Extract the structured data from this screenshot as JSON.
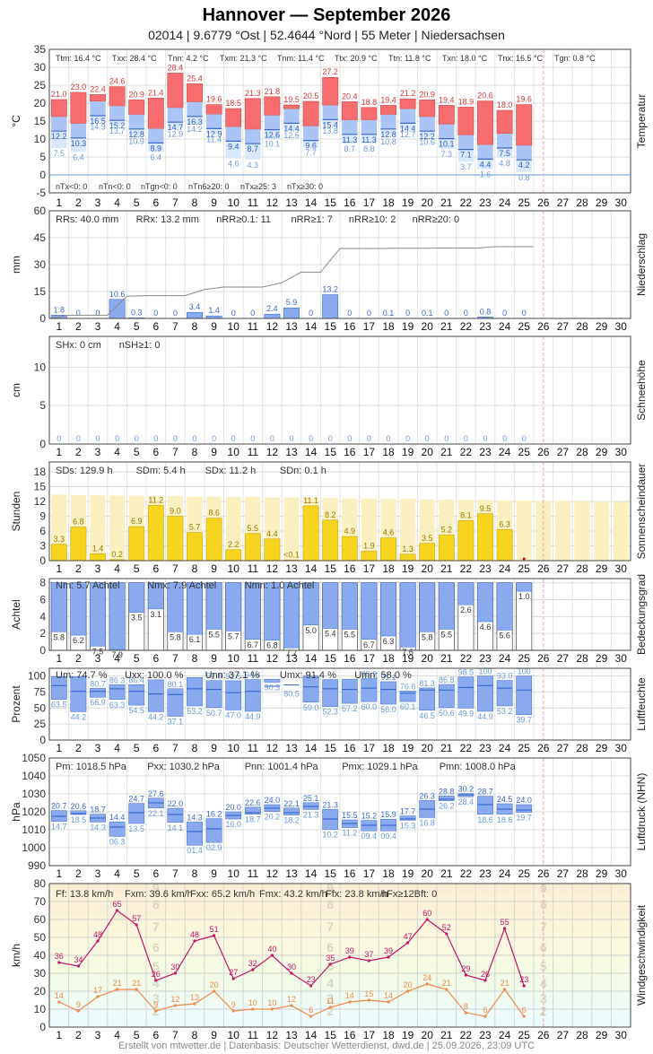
{
  "header": {
    "title": "Hannover  —  September 2026",
    "subtitle": "02014  |  9.6779 °Ost  |  52.4644 °Nord  |  55 Meter  |  Niedersachsen"
  },
  "footer": "Erstellt von mtwetter.de | Datenbasis: Deutscher Wetterdienst, dwd.de | 25.09.2026, 23:09 UTC",
  "days": [
    "1",
    "2",
    "3",
    "4",
    "5",
    "6",
    "7",
    "8",
    "9",
    "10",
    "11",
    "12",
    "13",
    "14",
    "15",
    "16",
    "17",
    "18",
    "19",
    "20",
    "21",
    "22",
    "23",
    "24",
    "25",
    "26",
    "27",
    "28",
    "29",
    "30"
  ],
  "today_marker_day": 25.5,
  "colors": {
    "temp_hi": "#f76c6c",
    "temp_mid": "#aac4f5",
    "temp_lo": "#d8e8fa",
    "rain": "#8aaaf0",
    "sun": "#f7d51e",
    "sun_bg": "#fbf1c0",
    "cloud": "#8aaaf0",
    "humid": "#8aaaf0",
    "press": "#8aaaf0",
    "wind_max": "#c4156a",
    "wind_avg": "#f08a4b",
    "grid": "#cccccc",
    "marker": "#f2a0b8"
  },
  "chart_data": [
    {
      "id": "temperature",
      "type": "bar",
      "side_label": "Temperatur",
      "ylabel": "°C",
      "ylim": [
        -5,
        35
      ],
      "ticks": [
        "35",
        "30",
        "25",
        "20",
        "15",
        "10",
        "5",
        "0",
        "-5"
      ],
      "stats_top": [
        "Ttm: 16.4 °C",
        "Txx: 28.4 °C",
        "Tnn: 4.2 °C",
        "Txm: 21.3 °C",
        "Tnm: 11.4 °C",
        "Ttx: 20.9 °C",
        "Ttn: 11.8 °C",
        "Txn: 18.0 °C",
        "Tnx: 16.5 °C",
        "Tgn: 0.8 °C"
      ],
      "stats_bottom": [
        "nTx<0: 0",
        "nTn<0: 0",
        "nTgn<0: 0",
        "nTn6≥20: 0",
        "nTx≥25: 3",
        "nTx≥30: 0"
      ],
      "tmax": [
        21.0,
        23.0,
        22.4,
        24.6,
        20.9,
        21.4,
        28.4,
        25.4,
        19.6,
        18.5,
        21.3,
        21.8,
        19.5,
        20.5,
        27.2,
        20.4,
        18.8,
        19.4,
        21.2,
        20.9,
        19.4,
        18.9,
        20.6,
        18.0,
        19.6
      ],
      "tmean": [
        12.2,
        10.3,
        16.5,
        15.2,
        12.8,
        8.9,
        14.7,
        16.3,
        12.9,
        9.4,
        8.7,
        12.6,
        14.4,
        9.6,
        15.4,
        11.3,
        11.3,
        12.8,
        14.4,
        12.2,
        10.1,
        7.1,
        4.4,
        7.5,
        4.2
      ],
      "tmin": [
        7.5,
        6.4,
        14.9,
        13.7,
        10.9,
        6.4,
        12.9,
        14.2,
        11.4,
        4.6,
        4.3,
        10.1,
        12.5,
        7.7,
        13.8,
        8.7,
        8.8,
        10.8,
        12.7,
        10.6,
        7.3,
        3.7,
        1.6,
        4.8,
        0.8
      ],
      "tmin_label": [
        7.5,
        6.4,
        14.9,
        13.7,
        10.9,
        6.4,
        12.9,
        14.2,
        11.4,
        4.6,
        4.3,
        10.1,
        12.5,
        7.7,
        13.8,
        8.7,
        8.8,
        10.8,
        12.7,
        10.6,
        7.3,
        3.7,
        1.6,
        4.8,
        0.8
      ],
      "tmin_labels_alt": [
        "",
        "",
        "",
        "",
        "",
        "",
        "",
        "",
        "",
        "",
        "",
        "",
        "",
        "",
        "",
        "",
        "",
        "",
        "",
        "",
        "",
        "",
        "1.6",
        "",
        "0.8"
      ]
    },
    {
      "id": "precipitation",
      "type": "bar",
      "side_label": "Niederschlag",
      "ylabel": "mm",
      "ylim": [
        0,
        60
      ],
      "ticks": [
        "60",
        "45",
        "30",
        "15",
        "0"
      ],
      "stats": [
        "RRs: 40.0 mm",
        "RRx: 13.2 mm",
        "nRR≥0.1: 11",
        "nRR≥1: 7",
        "nRR≥10: 2",
        "nRR≥20: 0"
      ],
      "values": [
        1.8,
        0,
        0,
        10.6,
        0.3,
        0,
        0,
        3.4,
        1.4,
        0,
        0,
        2.4,
        5.9,
        0,
        13.2,
        0,
        0,
        0.1,
        0,
        0.1,
        0,
        0,
        0.8,
        0,
        0
      ],
      "labels": [
        "1.8",
        "0",
        "0",
        "10.6",
        "0.3",
        "0",
        "0",
        "3.4",
        "1.4",
        "0",
        "0",
        "2.4",
        "5.9",
        "0",
        "13.2",
        "0",
        "0",
        "0.1",
        "0",
        "0.1",
        "0",
        "0",
        "0.8",
        "0",
        "0"
      ],
      "cumulative": [
        1.8,
        1.8,
        1.8,
        12.4,
        12.7,
        12.7,
        12.7,
        16.1,
        17.5,
        17.5,
        17.5,
        19.9,
        25.8,
        25.8,
        39.0,
        39.0,
        39.0,
        39.1,
        39.1,
        39.2,
        39.2,
        39.2,
        40.0,
        40.0,
        40.0
      ]
    },
    {
      "id": "snow",
      "type": "bar",
      "side_label": "Schneehöhe",
      "ylabel": "cm",
      "ylim": [
        0,
        14
      ],
      "ticks": [
        "10",
        "5",
        "0"
      ],
      "stats": [
        "SHx: 0 cm",
        "nSH≥1: 0"
      ],
      "values": [
        0,
        0,
        0,
        0,
        0,
        0,
        0,
        0,
        0,
        0,
        0,
        0,
        0,
        0,
        0,
        0,
        0,
        0,
        0,
        0,
        0,
        0,
        0,
        0,
        0
      ],
      "labels": [
        "0",
        "0",
        "0",
        "0",
        "0",
        "0",
        "0",
        "0",
        "0",
        "0",
        "0",
        "0",
        "0",
        "0",
        "0",
        "0",
        "0",
        "0",
        "0",
        "0",
        "0",
        "0",
        "0",
        "0",
        "0"
      ]
    },
    {
      "id": "sunshine",
      "type": "bar",
      "side_label": "Sonnenscheindauer",
      "ylabel": "Stunden",
      "ylim": [
        0,
        20
      ],
      "ticks": [
        "18",
        "15",
        "12",
        "9",
        "6",
        "3",
        "0"
      ],
      "stats": [
        "SDs: 129.9 h",
        "SDm: 5.4 h",
        "SDx: 11.2 h",
        "SDn: 0.1 h"
      ],
      "values": [
        3.3,
        6.8,
        1.4,
        0.2,
        6.9,
        11.2,
        9.0,
        5.7,
        8.6,
        2.2,
        5.5,
        4.4,
        0.1,
        11.1,
        8.2,
        4.9,
        1.9,
        4.6,
        1.3,
        3.5,
        5.2,
        8.1,
        9.5,
        6.3,
        0
      ],
      "labels": [
        "3.3",
        "6.8",
        "1.4",
        "0.2",
        "6.9",
        "11.2",
        "9.0",
        "5.7",
        "8.6",
        "2.2",
        "5.5",
        "4.4",
        "<0.1",
        "11.1",
        "8.2",
        "4.9",
        "1.9",
        "4.6",
        "1.3",
        "3.5",
        "5.2",
        "8.1",
        "9.5",
        "6.3",
        ""
      ],
      "possible": [
        13.4,
        13.3,
        13.3,
        13.2,
        13.2,
        13.1,
        13.1,
        13.0,
        13.0,
        12.9,
        12.9,
        12.8,
        12.8,
        12.7,
        12.7,
        12.6,
        12.6,
        12.5,
        12.5,
        12.4,
        12.4,
        12.3,
        12.3,
        12.2,
        12.2,
        12.1,
        12.1,
        12.0,
        12.0,
        11.9
      ]
    },
    {
      "id": "cloud",
      "type": "bar",
      "side_label": "Bedeckungsgrad",
      "ylabel": "Achtel",
      "ylim": [
        0,
        8.5
      ],
      "ticks": [
        "8",
        "6",
        "4",
        "2",
        "0"
      ],
      "stats": [
        "Nm: 5.7 Achtel",
        "Nmx: 7.9 Achtel",
        "Nmn: 1.0 Achtel"
      ],
      "values": [
        5.8,
        6.2,
        7.5,
        7.9,
        3.5,
        3.1,
        5.8,
        6.1,
        5.5,
        5.7,
        6.7,
        6.8,
        7.7,
        5.0,
        5.4,
        5.5,
        6.7,
        6.3,
        7.6,
        5.8,
        5.5,
        2.6,
        4.6,
        5.6,
        1.0
      ],
      "labels": [
        "5.8",
        "6.2",
        "7.5",
        "7.9",
        "3.5",
        "3.1",
        "5.8",
        "6.1",
        "5.5",
        "5.7",
        "6.7",
        "6.8",
        "7.7",
        "5.0",
        "5.4",
        "5.5",
        "6.7",
        "6.3",
        "7.6",
        "5.8",
        "5.5",
        "2.6",
        "4.6",
        "5.6",
        "1.0"
      ]
    },
    {
      "id": "humidity",
      "type": "bar",
      "side_label": "Luftfeuchte",
      "ylabel": "Prozent",
      "ylim": [
        0,
        112
      ],
      "ticks": [
        "100",
        "75",
        "50",
        "25",
        "0"
      ],
      "stats": [
        "Um: 74.7 %",
        "Uxx: 100.0 %",
        "Unn: 37.1 %",
        "Umx: 91.4 %",
        "Umn: 58.0 %"
      ],
      "umax": [
        99.0,
        99.0,
        80.7,
        86.3,
        86.4,
        94.0,
        80.1,
        97.6,
        92.8,
        92.5,
        94.4,
        95.0,
        80.5,
        100,
        94.4,
        95.0,
        95.9,
        91.1,
        76.6,
        81.3,
        86.8,
        98.5,
        100,
        93.0,
        100
      ],
      "umean": [
        85,
        76,
        76,
        80,
        76,
        72,
        71,
        80,
        79,
        74,
        76,
        84,
        86,
        83,
        80,
        79,
        81,
        79,
        73,
        78,
        78,
        82,
        85,
        81,
        78
      ],
      "umin": [
        63.5,
        44.2,
        66.9,
        63.3,
        54.5,
        44.2,
        37.1,
        53.2,
        50.7,
        47.0,
        44.9,
        90.3,
        80.5,
        59.0,
        52.3,
        57.2,
        60.0,
        56.0,
        60.1,
        46.5,
        50.6,
        49.9,
        44.9,
        53.2,
        39.7
      ],
      "umax_labels": [
        "",
        "",
        "80.7",
        "86.3",
        "86.4",
        "",
        "80.1",
        "",
        "92.8",
        "92.5",
        "94.4",
        "",
        "",
        "",
        "",
        "",
        "95.9",
        "91.1",
        "76.6",
        "81.3",
        "86.8",
        "98.5",
        "100",
        "93.0",
        "100"
      ],
      "umin_labels": [
        "63.5",
        "44.2",
        "66.9",
        "63.3",
        "54.5",
        "44.2",
        "37.1",
        "53.2",
        "50.7",
        "47.0",
        "44.9",
        "90.3",
        "80.5",
        "59.0",
        "52.3",
        "57.2",
        "60.0",
        "56.0",
        "60.1",
        "46.5",
        "50.6",
        "49.9",
        "44.9",
        "53.2",
        "39.7"
      ]
    },
    {
      "id": "pressure",
      "type": "bar",
      "side_label": "Luftdruck (NHN)",
      "ylabel": "hPa",
      "ylim": [
        990,
        1050
      ],
      "ticks": [
        "1050",
        "1040",
        "1030",
        "1020",
        "1010",
        "1000",
        "990"
      ],
      "stats": [
        "Pm: 1018.5 hPa",
        "Pxx: 1030.2 hPa",
        "Pnn: 1001.4 hPa",
        "Pmx: 1029.1 hPa",
        "Pmn: 1008.0 hPa"
      ],
      "pmax": [
        1020.7,
        1020.6,
        1018.7,
        1014.4,
        1024.7,
        1027.6,
        1022.0,
        1014.3,
        1016.2,
        1020.0,
        1022.6,
        1024.0,
        1022.1,
        1025.1,
        1021.3,
        1015.5,
        1015.2,
        1015.9,
        1017.7,
        1026.3,
        1028.8,
        1030.2,
        1028.7,
        1024.5,
        1024.0
      ],
      "pmean": [
        1017.5,
        1019.0,
        1016.5,
        1011.5,
        1019.5,
        1025.0,
        1018.5,
        1009.0,
        1010.5,
        1018.0,
        1019.5,
        1022.0,
        1019.5,
        1023.0,
        1016.0,
        1013.5,
        1012.5,
        1012.5,
        1016.0,
        1021.5,
        1027.0,
        1029.5,
        1024.0,
        1021.5,
        1021.0
      ],
      "pmin": [
        1014.7,
        1018.5,
        1014.3,
        1006.3,
        1013.5,
        1022.1,
        1014.1,
        1001.4,
        1002.9,
        1016.0,
        1018.7,
        1020.2,
        1018.2,
        1021.3,
        1010.2,
        1011.2,
        1009.4,
        1009.4,
        1015.3,
        1016.8,
        1026.2,
        1028.4,
        1018.6,
        1018.6,
        1019.7
      ],
      "pmax_labels": [
        "20.7",
        "20.6",
        "18.7",
        "14.4",
        "24.7",
        "27.6",
        "22.0",
        "14.3",
        "16.2",
        "20.0",
        "22.6",
        "24.0",
        "22.1",
        "25.1",
        "21.3",
        "15.5",
        "15.2",
        "15.9",
        "17.7",
        "26.3",
        "28.8",
        "30.2",
        "28.7",
        "24.5",
        "24.0"
      ],
      "pmin_labels": [
        "14.7",
        "18.5",
        "14.3",
        "06.3",
        "13.5",
        "22.1",
        "14.1",
        "01.4",
        "02.9",
        "16.0",
        "18.7",
        "20.2",
        "18.2",
        "21.3",
        "10.2",
        "11.2",
        "09.4",
        "09.4",
        "15.3",
        "16.8",
        "26.2",
        "28.4",
        "18.6",
        "18.6",
        "19.7"
      ]
    },
    {
      "id": "wind",
      "type": "line",
      "side_label": "Windgeschwindigkeit",
      "ylabel": "km/h",
      "ylim": [
        0,
        80
      ],
      "ticks": [
        "80",
        "70",
        "60",
        "50",
        "40",
        "30",
        "20",
        "10",
        "0"
      ],
      "stats": [
        "Ff: 13.8 km/h",
        "Fxm: 39.6 km/h",
        "Fxx: 65.2 km/h",
        "Fmx: 43.2 km/h",
        "Ffx: 23.8 km/h",
        "nFx≥12Bft: 0"
      ],
      "beaufort_labels": [
        "2",
        "3",
        "4",
        "5",
        "6",
        "7",
        "8",
        "9"
      ],
      "beaufort_bounds": [
        6,
        12,
        20,
        29,
        39,
        50,
        62,
        75,
        89
      ],
      "max_series": {
        "name": "Fx",
        "values": [
          36,
          34,
          48,
          65,
          57,
          26,
          30,
          48,
          51,
          27,
          32,
          40,
          30,
          23,
          35,
          39,
          37,
          39,
          47,
          60,
          52,
          29,
          26,
          55,
          23
        ]
      },
      "avg_series": {
        "name": "Ff",
        "values": [
          14,
          9,
          17,
          21,
          21,
          9,
          12,
          13,
          20,
          9,
          10,
          10,
          12,
          6,
          11,
          14,
          15,
          14,
          20,
          24,
          21,
          8,
          6,
          21,
          6
        ]
      }
    }
  ]
}
